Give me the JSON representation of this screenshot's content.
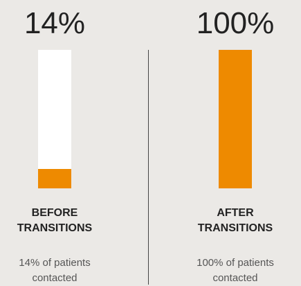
{
  "chart_data": {
    "type": "bar",
    "categories": [
      "BEFORE TRANSITIONS",
      "AFTER TRANSITIONS"
    ],
    "values": [
      14,
      100
    ],
    "value_labels": [
      "14%",
      "100%"
    ],
    "descriptions": [
      "14% of patients contacted",
      "100% of patients contacted"
    ],
    "ylim": [
      0,
      100
    ],
    "color": "#ee8a00"
  }
}
